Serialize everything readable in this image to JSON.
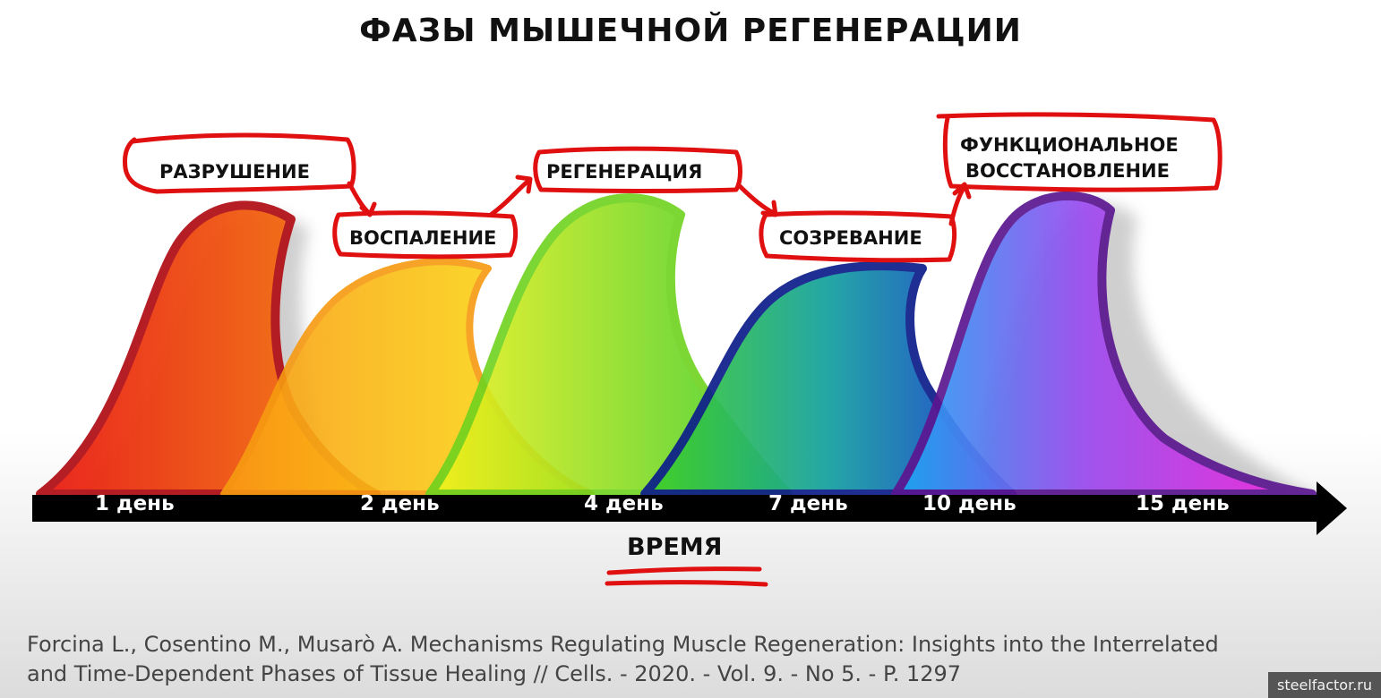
{
  "title": "ФАЗЫ МЫШЕЧНОЙ РЕГЕНЕРАЦИИ",
  "phases": [
    {
      "label": "РАЗРУШЕНИЕ",
      "color": "#d01818"
    },
    {
      "label": "ВОСПАЛЕНИЕ",
      "color": "#f7a812"
    },
    {
      "label": "РЕГЕНЕРАЦИЯ",
      "color": "#7ad520"
    },
    {
      "label": "СОЗРЕВАНИЕ",
      "color": "#0a2a9c"
    },
    {
      "label_line1": "ФУНКЦИОНАЛЬНОЕ",
      "label_line2": "ВОССТАНОВЛЕНИЕ",
      "color": "#6a1a9a"
    }
  ],
  "timeline": {
    "days": [
      "1 день",
      "2 день",
      "4 день",
      "7 день",
      "10 день",
      "15 день"
    ],
    "axis_label": "ВРЕМЯ"
  },
  "citation": {
    "line1": "Forcina L., Cosentino M., Musarò A. Mechanisms Regulating Muscle Regeneration: Insights into the Interrelated",
    "line2": "and Time-Dependent Phases of Tissue Healing // Cells. - 2020. - Vol. 9. - No 5. - P. 1297"
  },
  "watermark": "steelfactor.ru",
  "annotation_color": "#e01010"
}
